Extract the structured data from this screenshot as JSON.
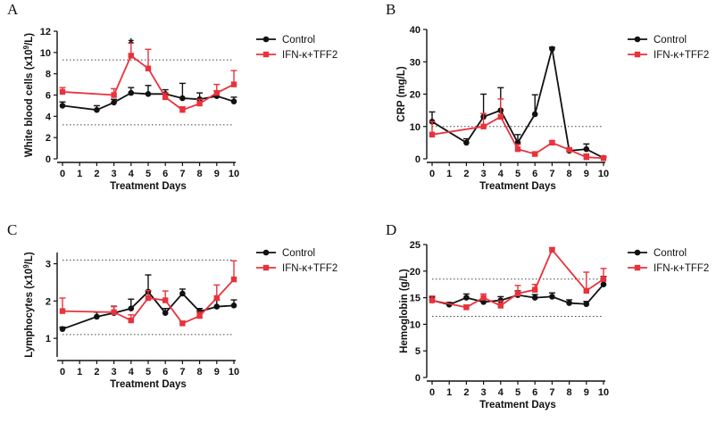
{
  "chart_data": [
    {
      "panel": "A",
      "type": "line",
      "xlabel": "Treatment Days",
      "ylabel_main": "White blood cells (x10",
      "ylabel_sup": "9",
      "ylabel_end": "/L)",
      "ylim": [
        0,
        12
      ],
      "yticks": [
        0,
        2,
        4,
        6,
        8,
        10,
        12
      ],
      "xticks": [
        0,
        1,
        2,
        3,
        4,
        5,
        6,
        7,
        8,
        9,
        10
      ],
      "reference_lines": [
        9.3,
        3.2
      ],
      "annotations": [
        {
          "x": 4,
          "y": 10.9,
          "text": "*"
        }
      ],
      "legend": [
        "Control",
        "IFN-κ+TFF2"
      ],
      "series": [
        {
          "name": "Control",
          "color": "#111111",
          "marker": "circle",
          "x": [
            0,
            2,
            3,
            4,
            5,
            6,
            7,
            8,
            9,
            10
          ],
          "y": [
            5.0,
            4.6,
            5.3,
            6.2,
            6.1,
            6.1,
            5.7,
            5.6,
            5.9,
            5.4
          ],
          "err": [
            0.35,
            0.4,
            0.3,
            0.5,
            0.8,
            0.4,
            1.4,
            0.6,
            0.5,
            0.4
          ]
        },
        {
          "name": "IFN-κ+TFF2",
          "color": "#e8323c",
          "marker": "square",
          "x": [
            0,
            3,
            4,
            5,
            6,
            7,
            8,
            9,
            10
          ],
          "y": [
            6.3,
            6.0,
            9.7,
            8.5,
            5.8,
            4.6,
            5.2,
            6.2,
            7.0
          ],
          "err": [
            0.4,
            0.6,
            1.2,
            1.8,
            0.4,
            0.3,
            0.4,
            0.8,
            1.3
          ]
        }
      ]
    },
    {
      "panel": "B",
      "type": "line",
      "xlabel": "Treatment Days",
      "ylabel_main": "CRP (mg/L)",
      "ylabel_sup": "",
      "ylabel_end": "",
      "ylim": [
        0,
        40
      ],
      "yticks": [
        0,
        10,
        20,
        30,
        40
      ],
      "xticks": [
        0,
        1,
        2,
        3,
        4,
        5,
        6,
        7,
        8,
        9,
        10
      ],
      "reference_lines": [
        10
      ],
      "annotations": [],
      "legend": [
        "Control",
        "IFN-κ+TFF2"
      ],
      "series": [
        {
          "name": "Control",
          "color": "#111111",
          "marker": "circle",
          "x": [
            0,
            2,
            3,
            4,
            5,
            6,
            7,
            8,
            9,
            10
          ],
          "y": [
            11.5,
            5.0,
            13.0,
            15.0,
            5.0,
            13.8,
            34.0,
            2.5,
            3.0,
            0.3
          ],
          "err": [
            3.0,
            1.2,
            7.0,
            7.0,
            2.5,
            6.0,
            0.5,
            0.6,
            1.6,
            0.4
          ]
        },
        {
          "name": "IFN-κ+TFF2",
          "color": "#e8323c",
          "marker": "square",
          "x": [
            0,
            3,
            4,
            5,
            6,
            7,
            8,
            9,
            10
          ],
          "y": [
            7.5,
            10.0,
            13.0,
            3.0,
            1.5,
            5.0,
            2.8,
            0.5,
            0.2
          ],
          "err": [
            4.0,
            4.0,
            5.5,
            1.5,
            0.6,
            0.6,
            0.4,
            1.0,
            0.3
          ]
        }
      ]
    },
    {
      "panel": "C",
      "type": "line",
      "xlabel": "Treatment Days",
      "ylabel_main": "Lymphocytes (x10",
      "ylabel_sup": "9",
      "ylabel_end": "/L)",
      "ylim": [
        0.5,
        3.3
      ],
      "yticks": [
        1,
        2,
        3
      ],
      "xticks": [
        0,
        1,
        2,
        3,
        4,
        5,
        6,
        7,
        8,
        9,
        10
      ],
      "reference_lines": [
        3.1,
        1.1
      ],
      "annotations": [],
      "legend": [
        "Control",
        "IFN-κ+TFF2"
      ],
      "series": [
        {
          "name": "Control",
          "color": "#111111",
          "marker": "circle",
          "x": [
            0,
            2,
            3,
            4,
            5,
            6,
            7,
            8,
            9,
            10
          ],
          "y": [
            1.25,
            1.58,
            1.68,
            1.8,
            2.25,
            1.68,
            2.2,
            1.72,
            1.85,
            1.88
          ],
          "err": [
            0.05,
            0.12,
            0.18,
            0.25,
            0.45,
            0.12,
            0.12,
            0.08,
            0.18,
            0.15
          ]
        },
        {
          "name": "IFN-κ+TFF2",
          "color": "#e8323c",
          "marker": "square",
          "x": [
            0,
            3,
            4,
            5,
            6,
            7,
            8,
            9,
            10
          ],
          "y": [
            1.73,
            1.7,
            1.48,
            2.08,
            2.02,
            1.4,
            1.6,
            2.08,
            2.58
          ],
          "err": [
            0.35,
            0.15,
            0.15,
            0.2,
            0.25,
            0.06,
            0.1,
            0.35,
            0.5
          ]
        }
      ]
    },
    {
      "panel": "D",
      "type": "line",
      "xlabel": "Treatment Days",
      "ylabel_main": "Hemoglobin (g/L)",
      "ylabel_sup": "",
      "ylabel_end": "",
      "ylim": [
        0,
        25
      ],
      "yticks": [
        0,
        5,
        10,
        15,
        20,
        25
      ],
      "xticks": [
        0,
        1,
        2,
        3,
        4,
        5,
        6,
        7,
        8,
        9,
        10
      ],
      "reference_lines": [
        18.5,
        11.5
      ],
      "annotations": [],
      "legend": [
        "Control",
        "IFN-κ+TFF2"
      ],
      "series": [
        {
          "name": "Control",
          "color": "#111111",
          "marker": "circle",
          "x": [
            0,
            1,
            2,
            3,
            4,
            5,
            6,
            7,
            8,
            9,
            10
          ],
          "y": [
            14.5,
            13.7,
            15.0,
            14.2,
            14.5,
            15.5,
            15.0,
            15.2,
            14.0,
            13.8,
            17.5
          ],
          "err": [
            0.6,
            0.4,
            0.7,
            0.6,
            0.7,
            0.8,
            0.6,
            0.7,
            0.6,
            0.5,
            1.5
          ]
        },
        {
          "name": "IFN-κ+TFF2",
          "color": "#e8323c",
          "marker": "square",
          "x": [
            0,
            2,
            3,
            4,
            5,
            6,
            7,
            9,
            10
          ],
          "y": [
            14.5,
            13.2,
            15.0,
            13.5,
            15.8,
            16.5,
            24.0,
            16.3,
            18.5
          ],
          "err": [
            0.8,
            0.4,
            0.7,
            0.9,
            1.5,
            1.0,
            0.4,
            3.5,
            2.0
          ]
        }
      ]
    }
  ]
}
